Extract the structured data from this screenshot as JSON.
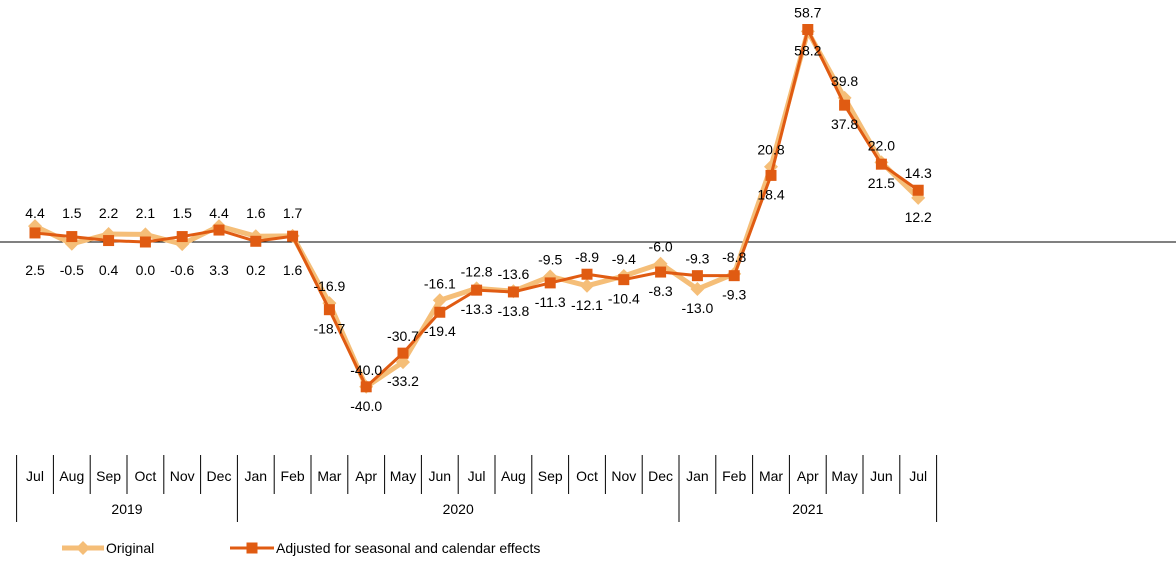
{
  "chart_data": {
    "type": "line",
    "categories": [
      "Jul",
      "Aug",
      "Sep",
      "Oct",
      "Nov",
      "Dec",
      "Jan",
      "Feb",
      "Mar",
      "Apr",
      "May",
      "Jun",
      "Jul",
      "Aug",
      "Sep",
      "Oct",
      "Nov",
      "Dec",
      "Jan",
      "Feb",
      "Mar",
      "Apr",
      "May",
      "Jun",
      "Jul"
    ],
    "year_groups": [
      {
        "label": "2019",
        "count": 6
      },
      {
        "label": "2020",
        "count": 12
      },
      {
        "label": "2021",
        "count": 7
      }
    ],
    "series": [
      {
        "name": "Original",
        "color": "#F5BE78",
        "marker": "diamond",
        "values": [
          4.4,
          -0.5,
          2.2,
          2.1,
          -0.6,
          4.4,
          1.6,
          1.7,
          -16.9,
          -40.0,
          -33.2,
          -16.1,
          -12.8,
          -13.6,
          -9.5,
          -12.1,
          -9.4,
          -6.0,
          -13.0,
          -8.8,
          20.8,
          58.2,
          39.8,
          22.0,
          12.2
        ]
      },
      {
        "name": "Adjusted for seasonal and calendar effects",
        "color": "#E05B12",
        "marker": "square",
        "values": [
          2.5,
          1.5,
          0.4,
          0.0,
          1.5,
          3.3,
          0.2,
          1.6,
          -18.7,
          -40.0,
          -30.7,
          -19.4,
          -13.3,
          -13.8,
          -11.3,
          -8.9,
          -10.4,
          -8.3,
          -9.3,
          -9.3,
          18.4,
          58.7,
          37.8,
          21.5,
          14.3
        ]
      }
    ],
    "ylim": [
      -50,
      65
    ],
    "grid": false,
    "legend_position": "bottom-left"
  }
}
